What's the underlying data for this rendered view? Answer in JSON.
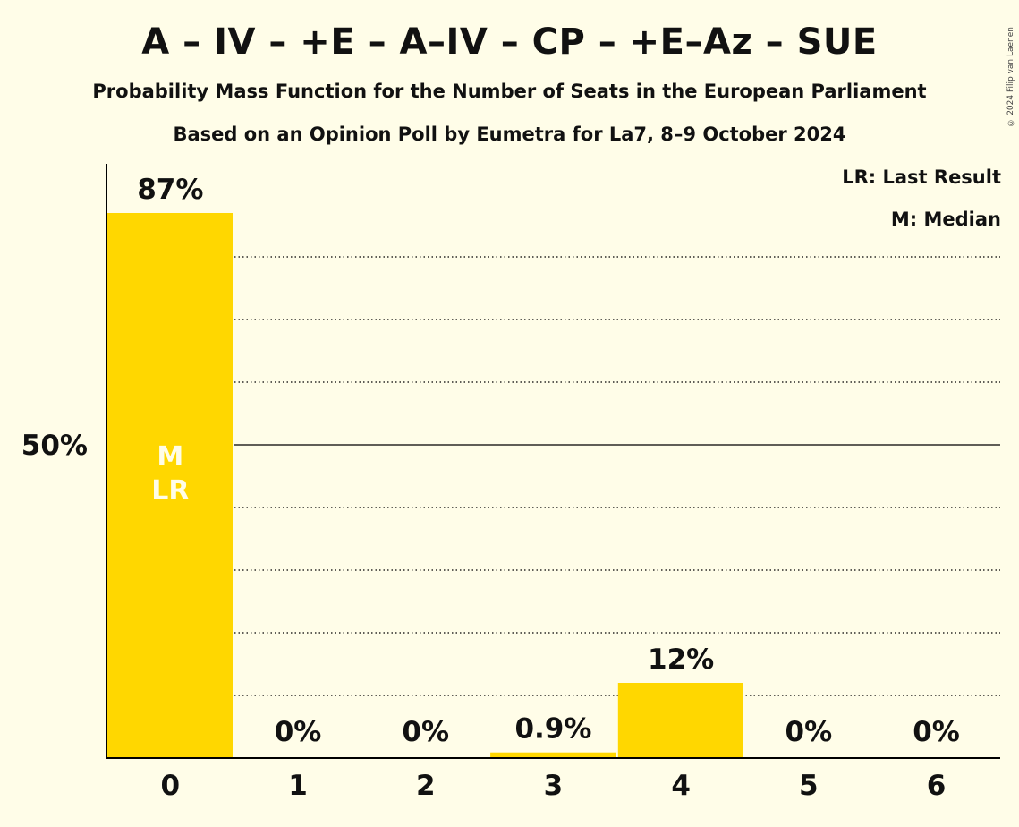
{
  "title": "A – IV – +E – A–IV – CP – +E–Az – SUE",
  "subtitle": "Probability Mass Function for the Number of Seats in the European Parliament",
  "subtitle2": "Based on an Opinion Poll by Eumetra for La7, 8–9 October 2024",
  "copyright": "© 2024 Filip van Laenen",
  "legend": {
    "last_result": "LR: Last Result",
    "median": "M: Median"
  },
  "colors": {
    "background": "#FFFDE8",
    "bar": "#FFD700",
    "median_text": "#FFFDE8",
    "axis": "#000000"
  },
  "chart_data": {
    "type": "bar",
    "categories": [
      "0",
      "1",
      "2",
      "3",
      "4",
      "5",
      "6"
    ],
    "values": [
      87,
      0,
      0,
      0.9,
      12,
      0,
      0
    ],
    "value_labels": [
      "87%",
      "0%",
      "0%",
      "0.9%",
      "12%",
      "0%",
      "0%"
    ],
    "ylim": [
      0,
      95
    ],
    "yticks": [
      {
        "value": 50,
        "label": "50%"
      }
    ],
    "gridlines": [
      10,
      20,
      30,
      40,
      50,
      60,
      70,
      80
    ],
    "major_gridline": 50,
    "median_category": "0",
    "last_result_category": "0",
    "bar_markers": [
      "M",
      "LR"
    ]
  }
}
